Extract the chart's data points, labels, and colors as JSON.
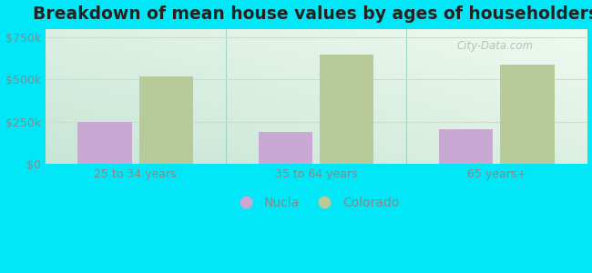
{
  "title": "Breakdown of mean house values by ages of householders",
  "categories": [
    "25 to 34 years",
    "35 to 64 years",
    "65 years+"
  ],
  "nucla_values": [
    250000,
    190000,
    205000
  ],
  "colorado_values": [
    520000,
    650000,
    590000
  ],
  "nucla_color": "#c9a8d4",
  "colorado_color": "#b8c99a",
  "background_top_right": "#f0f8f0",
  "background_bottom_left": "#c8e8d8",
  "outer_background": "#00e8f8",
  "ylim": [
    0,
    800000
  ],
  "yticks": [
    0,
    250000,
    500000,
    750000
  ],
  "ytick_labels": [
    "$0",
    "$250k",
    "$500k",
    "$750k"
  ],
  "legend_nucla": "Nucla",
  "legend_colorado": "Colorado",
  "bar_width": 0.3,
  "title_fontsize": 13.5,
  "tick_fontsize": 9,
  "legend_fontsize": 10,
  "tick_color": "#888888",
  "separator_color": "#88ccbb",
  "grid_color": "#ccddcc"
}
